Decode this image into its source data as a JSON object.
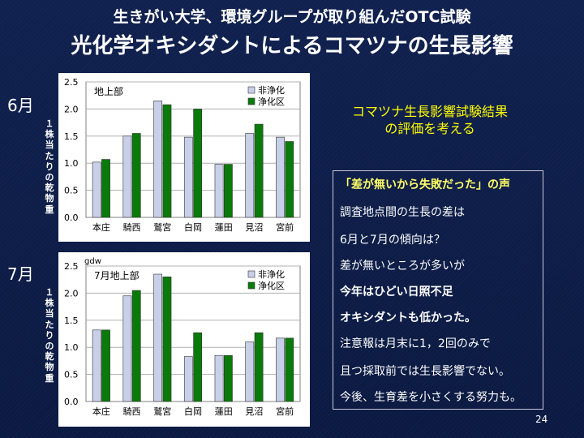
{
  "slide": {
    "subtitle": "生きがい大学、環境グループが取り組んだOTC試験",
    "title": "光化学オキシダントによるコマツナの生長影響",
    "page_number": "24"
  },
  "y_axis_label": "１株当たりの乾物重",
  "colors": {
    "background": "#0d1b44",
    "non_purified": "#c8cfe8",
    "purified": "#0a7a0a",
    "highlight": "#ffff00"
  },
  "evaluation": {
    "heading_line1": "コマツナ生長影響試験結果",
    "heading_line2": "の評価を考える"
  },
  "panel": {
    "lines": [
      "「差が無いから失敗だった」の声",
      "調査地点間の生長の差は",
      "6月と7月の傾向は？",
      "差が無いところが多いが",
      "今年はひどい日照不足",
      "オキシダントも低かった。",
      "注意報は月末に1，2回のみで",
      "且つ採取前では生長影響でない。",
      "今後、生育差を小さくする努力も。"
    ]
  },
  "chart_data": [
    {
      "type": "bar",
      "month_label": "6月",
      "title": "地上部",
      "unit": "",
      "categories": [
        "本庄",
        "騎西",
        "鷲宮",
        "白岡",
        "蓮田",
        "見沼",
        "宮前"
      ],
      "series": [
        {
          "name": "非浄化",
          "values": [
            1.02,
            1.5,
            2.15,
            1.48,
            0.98,
            1.55,
            1.48
          ]
        },
        {
          "name": "浄化区",
          "values": [
            1.07,
            1.55,
            2.08,
            2.0,
            0.98,
            1.72,
            1.4
          ]
        }
      ],
      "ylim": [
        0,
        2.5
      ],
      "yticks": [
        "0.0",
        "0.5",
        "1.0",
        "1.5",
        "2.0",
        "2.5"
      ],
      "grid": true,
      "legend": "top-right"
    },
    {
      "type": "bar",
      "month_label": "7月",
      "title": "7月地上部",
      "unit": "gdw",
      "categories": [
        "本庄",
        "騎西",
        "鷲宮",
        "白岡",
        "蓮田",
        "見沼",
        "宮前"
      ],
      "series": [
        {
          "name": "非浄化",
          "values": [
            1.32,
            1.95,
            2.35,
            0.83,
            0.85,
            1.1,
            1.17
          ]
        },
        {
          "name": "浄化区",
          "values": [
            1.32,
            2.05,
            2.3,
            1.27,
            0.85,
            1.27,
            1.17
          ]
        }
      ],
      "ylim": [
        0,
        2.5
      ],
      "yticks": [
        "0.0",
        "0.5",
        "1.0",
        "1.5",
        "2.0",
        "2.5"
      ],
      "grid": true,
      "legend": "top-right"
    }
  ]
}
